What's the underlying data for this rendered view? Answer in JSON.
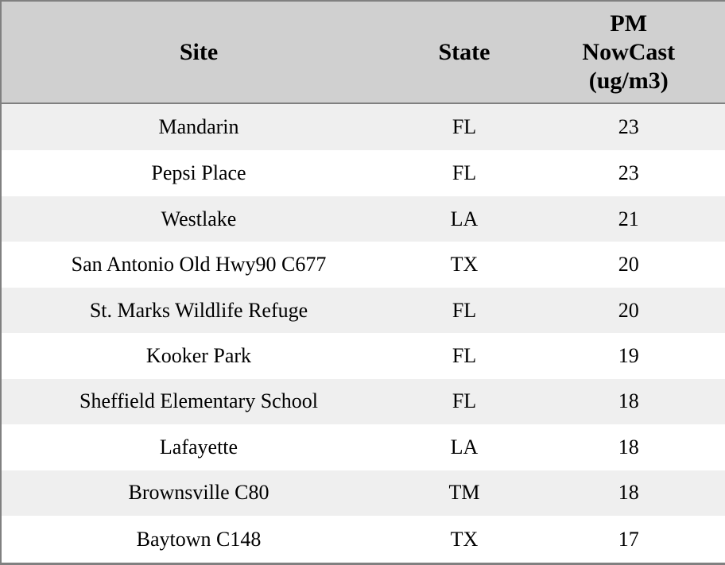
{
  "chart_data": {
    "type": "table",
    "columns": [
      "Site",
      "State",
      "PM NowCast (ug/m3)"
    ],
    "rows": [
      [
        "Mandarin",
        "FL",
        "23"
      ],
      [
        "Pepsi Place",
        "FL",
        "23"
      ],
      [
        "Westlake",
        "LA",
        "21"
      ],
      [
        "San Antonio Old Hwy90 C677",
        "TX",
        "20"
      ],
      [
        "St. Marks Wildlife Refuge",
        "FL",
        "20"
      ],
      [
        "Kooker Park",
        "FL",
        "19"
      ],
      [
        "Sheffield Elementary School",
        "FL",
        "18"
      ],
      [
        "Lafayette",
        "LA",
        "18"
      ],
      [
        "Brownsville C80",
        "TM",
        "18"
      ],
      [
        "Baytown C148",
        "TX",
        "17"
      ]
    ]
  },
  "colors": {
    "header_bg": "#d0d0d0",
    "stripe_bg": "#efefef",
    "row_bg": "#ffffff",
    "border": "#808080",
    "text": "#000000"
  }
}
